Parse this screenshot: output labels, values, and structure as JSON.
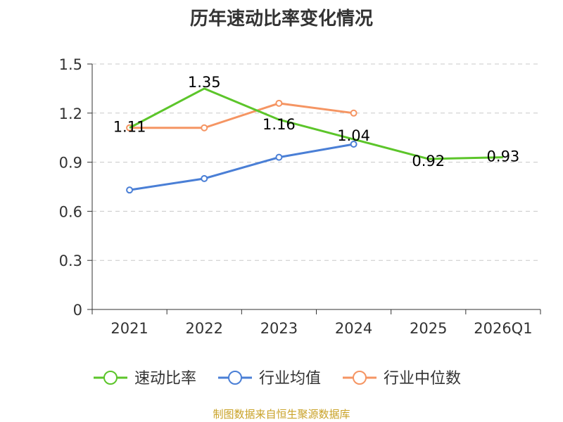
{
  "chart_data": {
    "type": "line",
    "title": "历年速动比率变化情况",
    "categories": [
      "2021",
      "2022",
      "2023",
      "2024",
      "2025",
      "2026Q1"
    ],
    "ylim": [
      0,
      1.5
    ],
    "yticks": [
      "0",
      "0.3",
      "0.6",
      "0.9",
      "1.2",
      "1.5"
    ],
    "ytick_values": [
      0,
      0.3,
      0.6,
      0.9,
      1.2,
      1.5
    ],
    "grid": true,
    "legend_position": "bottom",
    "series": [
      {
        "name": "速动比率",
        "color": "#5cc52a",
        "values": [
          1.11,
          1.35,
          1.16,
          1.04,
          0.92,
          0.93
        ],
        "labels": [
          "1.11",
          "1.35",
          "1.16",
          "1.04",
          "0.92",
          "0.93"
        ],
        "show_points": false
      },
      {
        "name": "行业均值",
        "color": "#4a7fd6",
        "values": [
          0.73,
          0.8,
          0.93,
          1.01,
          null,
          null
        ],
        "show_points": true
      },
      {
        "name": "行业中位数",
        "color": "#f59563",
        "values": [
          1.11,
          1.11,
          1.26,
          1.2,
          null,
          null
        ],
        "show_points": true
      }
    ],
    "source": "制图数据来自恒生聚源数据库"
  }
}
